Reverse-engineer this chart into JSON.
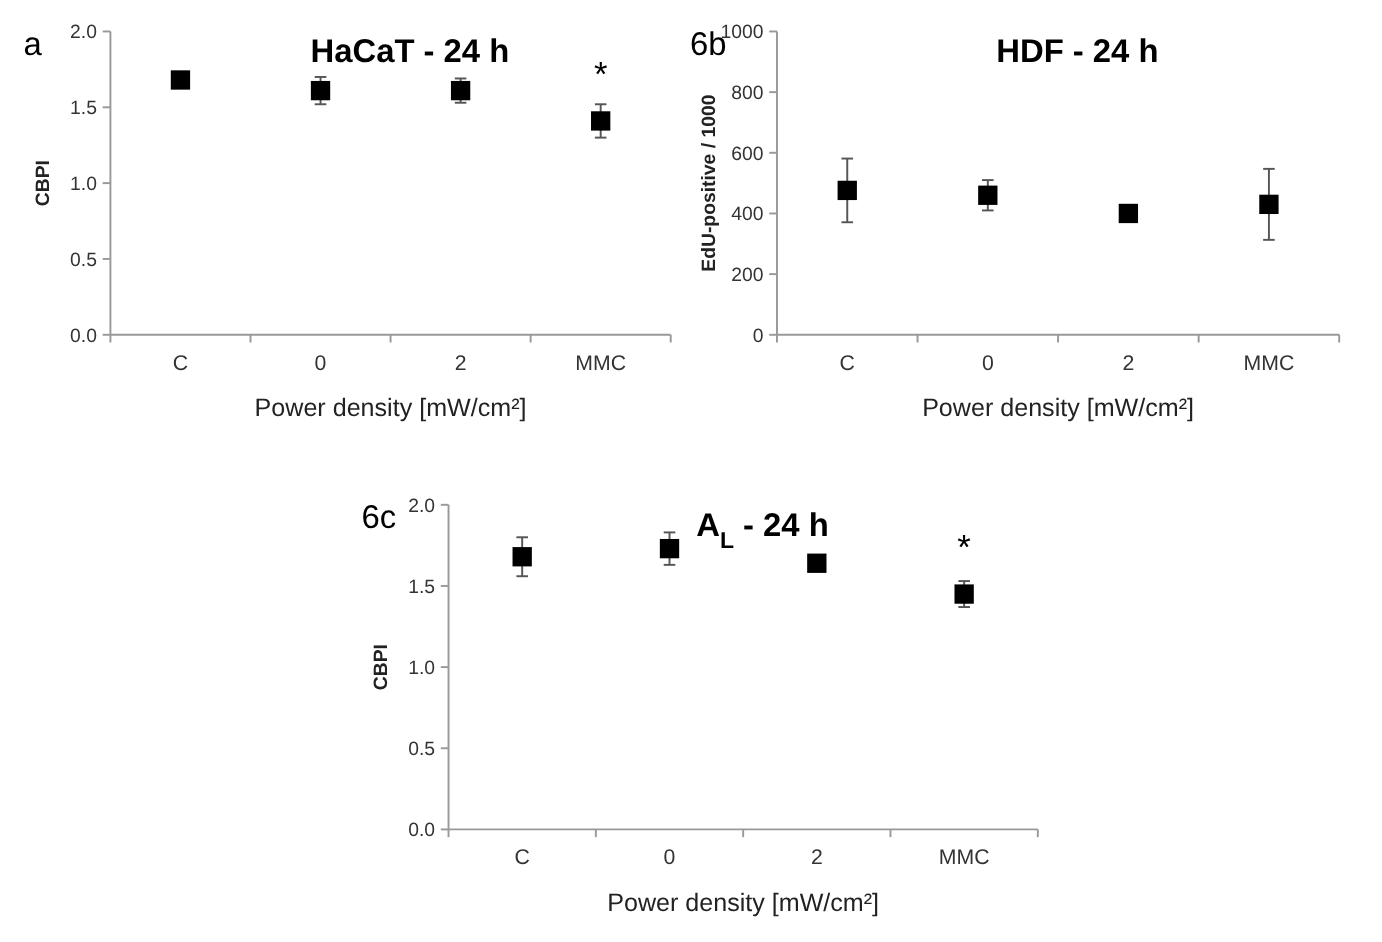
{
  "chart_data": [
    {
      "type": "scatter",
      "title": "HaCaT - 24 h",
      "xlabel": "Power density [mW/cm²]",
      "ylabel": "CBPI",
      "categories": [
        "C",
        "0",
        "2",
        "MMC"
      ],
      "series": [
        {
          "color": "#000000",
          "values": [
            1.68,
            1.61,
            1.61,
            1.41
          ],
          "errors": [
            null,
            0.09,
            0.08,
            0.11
          ]
        }
      ],
      "ylim": [
        0,
        2
      ],
      "yticks": [
        {
          "value": 0,
          "label": "0.0"
        },
        {
          "value": 0.5,
          "label": "0.5"
        },
        {
          "value": 1,
          "label": "1.0"
        },
        {
          "value": 1.5,
          "label": "1.5"
        },
        {
          "value": 2,
          "label": "2.0"
        }
      ],
      "marker": "square",
      "grid": false,
      "annotations": [
        "a",
        "*"
      ]
    },
    {
      "type": "scatter",
      "title": "HDF - 24 h",
      "xlabel": "Power density [mW/cm²]",
      "ylabel": "EdU-positive / 1000",
      "categories": [
        "C",
        "0",
        "2",
        "MMC"
      ],
      "series": [
        {
          "color": "#000000",
          "values": [
            476,
            460,
            400,
            430
          ],
          "errors": [
            105,
            50,
            15,
            117
          ]
        }
      ],
      "ylim": [
        0,
        1000
      ],
      "yticks": [
        0,
        200,
        400,
        600,
        800,
        1000
      ],
      "marker": "square",
      "grid": false,
      "annotations": [
        "6b"
      ]
    },
    {
      "type": "scatter",
      "title": "A$_{L}$ - 24 h",
      "xlabel": "Power density [mW/cm²]",
      "ylabel": "CBPI",
      "categories": [
        "C",
        "0",
        "2",
        "MMC"
      ],
      "series": [
        {
          "color": "#000000",
          "values": [
            1.68,
            1.73,
            1.64,
            1.45
          ],
          "errors": [
            0.12,
            0.1,
            null,
            0.08
          ]
        }
      ],
      "ylim": [
        0,
        2
      ],
      "yticks": [
        {
          "value": 0,
          "label": "0.0"
        },
        {
          "value": 0.5,
          "label": "0.5"
        },
        {
          "value": 1,
          "label": "1.0"
        },
        {
          "value": 1.5,
          "label": "1.5"
        },
        {
          "value": 2,
          "label": "2.0"
        }
      ],
      "marker": "square",
      "grid": false,
      "annotations": [
        "6c",
        "*"
      ]
    }
  ]
}
